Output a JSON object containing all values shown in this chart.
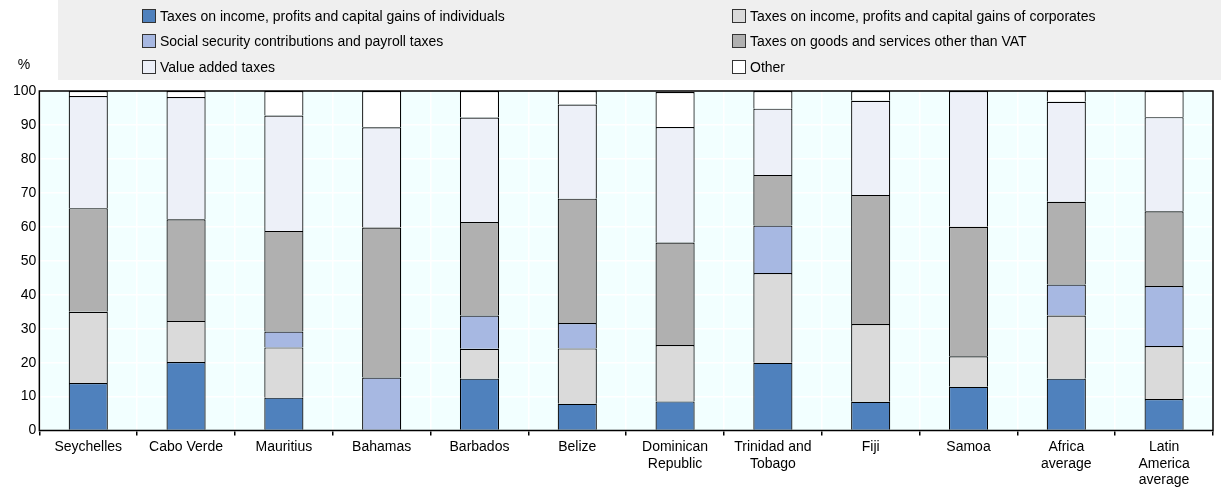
{
  "chart_data": {
    "type": "bar",
    "stacked": true,
    "ylabel": "%",
    "categories": [
      "Seychelles",
      "Cabo Verde",
      "Mauritius",
      "Bahamas",
      "Barbados",
      "Belize",
      "Dominican Republic",
      "Trinidad and Tobago",
      "Fiji",
      "Samoa",
      "Africa average",
      "Latin America average"
    ],
    "series": [
      {
        "name": "Taxes on income, profits and capital gains of individuals",
        "color": "#4f81bd",
        "values": [
          14,
          20.2,
          9.7,
          0,
          15.3,
          7.9,
          8.6,
          20,
          8.5,
          12.9,
          15.3,
          9.3
        ]
      },
      {
        "name": "Taxes on income, profits and capital gains of corporates",
        "color": "#dadada",
        "values": [
          21,
          12.1,
          14.8,
          0,
          8.8,
          16.3,
          16.6,
          26.4,
          22.9,
          9,
          18.6,
          15.6
        ]
      },
      {
        "name": "Social security contributions and payroll taxes",
        "color": "#a7b8e2",
        "values": [
          0,
          0,
          4.7,
          15.6,
          9.8,
          7.5,
          null,
          14,
          0,
          0,
          9.1,
          17.7
        ]
      },
      {
        "name": "Taxes on goods and services other than VAT",
        "color": "#b0b0b0",
        "values": [
          30.5,
          29.9,
          29.6,
          44.2,
          27.5,
          36.6,
          30.2,
          14.9,
          38,
          38.1,
          24.4,
          22
        ]
      },
      {
        "name": "Value added taxes",
        "color": "#edf0f8",
        "values": [
          33,
          36,
          34,
          29.5,
          30.8,
          27.7,
          34,
          19.5,
          27.7,
          40,
          29.4,
          27.7
        ]
      },
      {
        "name": "Other",
        "color": "#ffffff",
        "values": [
          1.5,
          1.8,
          7.2,
          10.7,
          7.8,
          4,
          10.3,
          5.2,
          2.9,
          0,
          3.2,
          7.7
        ]
      }
    ],
    "ylim": [
      0,
      100
    ],
    "yticks": [
      0,
      10,
      20,
      30,
      40,
      50,
      60,
      70,
      80,
      90,
      100
    ],
    "grid": true,
    "legend": "top"
  }
}
